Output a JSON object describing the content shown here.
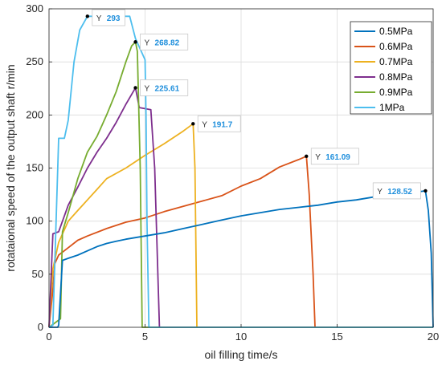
{
  "chart_data": {
    "type": "line",
    "xlabel": "oil filling time/s",
    "ylabel": "rotataional speed of the output shaft r/min",
    "xlim": [
      0,
      20
    ],
    "ylim": [
      0,
      300
    ],
    "xticks": [
      "0",
      "5",
      "10",
      "15",
      "20"
    ],
    "yticks": [
      "0",
      "50",
      "100",
      "150",
      "200",
      "250",
      "300"
    ],
    "grid": true,
    "legend_position": "top-right",
    "series": [
      {
        "name": "0.5MPa",
        "color": "#0072bd",
        "points": [
          [
            0,
            0
          ],
          [
            0.45,
            0
          ],
          [
            0.5,
            2
          ],
          [
            0.7,
            63
          ],
          [
            1.0,
            65
          ],
          [
            1.5,
            68
          ],
          [
            2.0,
            72
          ],
          [
            2.5,
            76
          ],
          [
            3.0,
            79
          ],
          [
            3.5,
            81
          ],
          [
            4.0,
            83
          ],
          [
            5.0,
            86
          ],
          [
            6.0,
            89
          ],
          [
            7.0,
            93
          ],
          [
            8.0,
            97
          ],
          [
            9.0,
            101
          ],
          [
            10.0,
            105
          ],
          [
            11.0,
            108
          ],
          [
            12.0,
            111
          ],
          [
            13.0,
            113
          ],
          [
            14.0,
            115
          ],
          [
            15.0,
            118
          ],
          [
            16.0,
            120
          ],
          [
            17.0,
            123
          ],
          [
            18.0,
            125
          ],
          [
            19.0,
            127
          ],
          [
            19.6,
            128.52
          ],
          [
            19.75,
            110
          ],
          [
            19.9,
            70
          ],
          [
            20.0,
            0
          ]
        ]
      },
      {
        "name": "0.6MPa",
        "color": "#d95319",
        "points": [
          [
            0,
            0
          ],
          [
            0.2,
            35
          ],
          [
            0.3,
            60
          ],
          [
            0.5,
            68
          ],
          [
            1.0,
            75
          ],
          [
            1.5,
            82
          ],
          [
            2.0,
            86
          ],
          [
            3.0,
            93
          ],
          [
            4.0,
            99
          ],
          [
            5.0,
            103
          ],
          [
            6.0,
            109
          ],
          [
            7.0,
            114
          ],
          [
            8.0,
            119
          ],
          [
            9.0,
            124
          ],
          [
            10.0,
            133
          ],
          [
            11.0,
            140
          ],
          [
            12.0,
            151
          ],
          [
            13.0,
            158
          ],
          [
            13.4,
            161.09
          ],
          [
            13.55,
            125
          ],
          [
            13.75,
            50
          ],
          [
            13.85,
            0
          ],
          [
            20,
            0
          ]
        ]
      },
      {
        "name": "0.7MPa",
        "color": "#edb120",
        "points": [
          [
            0,
            0
          ],
          [
            0.2,
            55
          ],
          [
            0.5,
            80
          ],
          [
            1.0,
            100
          ],
          [
            1.5,
            110
          ],
          [
            2.0,
            120
          ],
          [
            2.5,
            130
          ],
          [
            3.0,
            140
          ],
          [
            3.5,
            145
          ],
          [
            4.0,
            150
          ],
          [
            5.0,
            162
          ],
          [
            6.0,
            173
          ],
          [
            7.0,
            185
          ],
          [
            7.5,
            191.7
          ],
          [
            7.6,
            150
          ],
          [
            7.7,
            0
          ],
          [
            20,
            0
          ]
        ]
      },
      {
        "name": "0.8MPa",
        "color": "#7e2f8e",
        "points": [
          [
            0,
            0
          ],
          [
            0.2,
            88
          ],
          [
            0.5,
            90
          ],
          [
            1.0,
            115
          ],
          [
            1.5,
            132
          ],
          [
            2.0,
            150
          ],
          [
            2.5,
            165
          ],
          [
            3.0,
            178
          ],
          [
            3.5,
            193
          ],
          [
            4.0,
            210
          ],
          [
            4.5,
            225.61
          ],
          [
            4.7,
            207
          ],
          [
            5.3,
            205
          ],
          [
            5.5,
            150
          ],
          [
            5.75,
            0
          ],
          [
            20,
            0
          ]
        ]
      },
      {
        "name": "0.9MPa",
        "color": "#77ac30",
        "points": [
          [
            0,
            0
          ],
          [
            0.6,
            8
          ],
          [
            0.7,
            90
          ],
          [
            1.0,
            108
          ],
          [
            1.5,
            140
          ],
          [
            2.0,
            165
          ],
          [
            2.5,
            180
          ],
          [
            3.0,
            200
          ],
          [
            3.5,
            222
          ],
          [
            4.0,
            250
          ],
          [
            4.3,
            265
          ],
          [
            4.5,
            268.82
          ],
          [
            4.6,
            260
          ],
          [
            4.75,
            150
          ],
          [
            4.85,
            0
          ],
          [
            20,
            0
          ]
        ]
      },
      {
        "name": "1MPa",
        "color": "#4dbeee",
        "points": [
          [
            0,
            0
          ],
          [
            0.2,
            2
          ],
          [
            0.5,
            178
          ],
          [
            0.8,
            178
          ],
          [
            1.0,
            195
          ],
          [
            1.3,
            250
          ],
          [
            1.6,
            280
          ],
          [
            2.0,
            293
          ],
          [
            4.2,
            293
          ],
          [
            4.5,
            272
          ],
          [
            4.8,
            260
          ],
          [
            5.0,
            252
          ],
          [
            5.05,
            200
          ],
          [
            5.1,
            100
          ],
          [
            5.2,
            0
          ],
          [
            20,
            0
          ]
        ]
      }
    ],
    "datatips": [
      {
        "series": "0.5MPa",
        "x": 19.6,
        "y": 128.52,
        "prefix": "Y",
        "label": "128.52"
      },
      {
        "series": "0.6MPa",
        "x": 13.4,
        "y": 161.09,
        "prefix": "Y",
        "label": "161.09"
      },
      {
        "series": "0.7MPa",
        "x": 7.5,
        "y": 191.7,
        "prefix": "Y",
        "label": "191.7"
      },
      {
        "series": "0.8MPa",
        "x": 4.5,
        "y": 225.61,
        "prefix": "Y",
        "label": "225.61"
      },
      {
        "series": "0.9MPa",
        "x": 4.5,
        "y": 268.82,
        "prefix": "Y",
        "label": "268.82"
      },
      {
        "series": "1MPa",
        "x": 2.0,
        "y": 293,
        "prefix": "Y",
        "label": "293"
      }
    ]
  }
}
